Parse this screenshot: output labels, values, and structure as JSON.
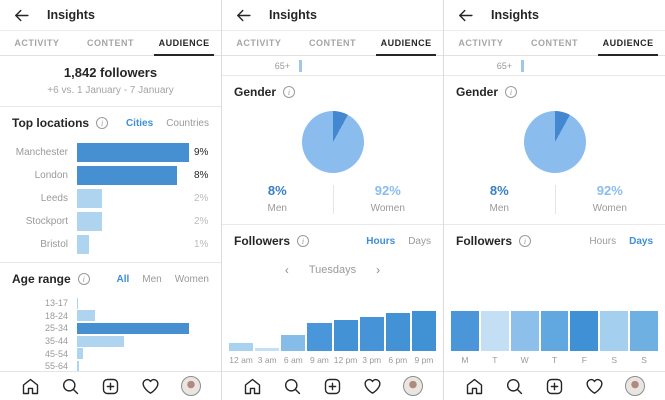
{
  "colors": {
    "accent_blue": "#3d8fd9",
    "bar_dark": "#4690d2",
    "bar_light": "#aed4f0",
    "tab_active": "#262626",
    "text_gray": "#9a9a9a"
  },
  "header": {
    "back_icon": "back-arrow-icon",
    "title": "Insights"
  },
  "tabs": {
    "activity": "ACTIVITY",
    "content": "CONTENT",
    "audience": "AUDIENCE",
    "active": "AUDIENCE"
  },
  "info_icon": "i",
  "nav": {
    "icons": [
      "home-icon",
      "search-icon",
      "new-post-icon",
      "heart-icon",
      "profile-avatar"
    ]
  },
  "panels": [
    {
      "summary": {
        "count": "1,842 followers",
        "delta": "+6 vs. 1 January - 7 January"
      },
      "top_locations": {
        "title": "Top locations",
        "toggle_cities": "Cities",
        "toggle_countries": "Countries",
        "active_toggle": "Cities",
        "chart_data": {
          "type": "bar",
          "orientation": "horizontal",
          "categories": [
            "Manchester",
            "London",
            "Leeds",
            "Stockport",
            "Bristol"
          ],
          "values": [
            9,
            8,
            2,
            2,
            1
          ],
          "value_labels": [
            "9%",
            "8%",
            "2%",
            "2%",
            "1%"
          ],
          "max": 9,
          "shades": [
            "dark",
            "dark",
            "light",
            "light",
            "light"
          ]
        }
      },
      "age_range": {
        "title": "Age range",
        "toggle_all": "All",
        "toggle_men": "Men",
        "toggle_women": "Women",
        "active_toggle": "All",
        "chart_data": {
          "type": "bar",
          "orientation": "horizontal",
          "categories": [
            "13-17",
            "18-24",
            "25-34",
            "35-44",
            "45-54",
            "55-64",
            "65+"
          ],
          "relative_widths": [
            1,
            16,
            100,
            42,
            5,
            2,
            1
          ],
          "shades": [
            "light",
            "light",
            "dark",
            "light",
            "light",
            "light",
            "light"
          ]
        }
      }
    },
    {
      "partial_row_label": "65+",
      "gender": {
        "title": "Gender",
        "chart_data": {
          "type": "pie",
          "labels": [
            "Men",
            "Women"
          ],
          "values": [
            8,
            92
          ],
          "value_labels": [
            "8%",
            "92%"
          ],
          "colors": [
            "#4287cf",
            "#8abced"
          ]
        }
      },
      "followers": {
        "title": "Followers",
        "toggle_hours": "Hours",
        "toggle_days": "Days",
        "active_toggle": "Hours",
        "selector": {
          "prev": "‹",
          "label": "Tuesdays",
          "next": "›"
        },
        "chart_data": {
          "type": "bar",
          "orientation": "vertical",
          "categories": [
            "12 am",
            "3 am",
            "6 am",
            "9 am",
            "12 pm",
            "3 pm",
            "6 pm",
            "9 pm"
          ],
          "relative_heights": [
            21,
            8,
            39,
            70,
            78,
            85,
            95,
            100
          ],
          "colors": [
            "#a9d2ef",
            "#c3e0f4",
            "#85bce8",
            "#4a96da",
            "#4392d6",
            "#4694d7",
            "#4392d6",
            "#4191d5"
          ]
        }
      }
    },
    {
      "partial_row_label": "65+",
      "gender": {
        "title": "Gender",
        "chart_data": {
          "type": "pie",
          "labels": [
            "Men",
            "Women"
          ],
          "values": [
            8,
            92
          ],
          "value_labels": [
            "8%",
            "92%"
          ],
          "colors": [
            "#4287cf",
            "#8abced"
          ]
        }
      },
      "followers": {
        "title": "Followers",
        "toggle_hours": "Hours",
        "toggle_days": "Days",
        "active_toggle": "Days",
        "chart_data": {
          "type": "bar",
          "orientation": "vertical",
          "categories": [
            "M",
            "T",
            "W",
            "T",
            "F",
            "S",
            "S"
          ],
          "relative_heights": [
            100,
            100,
            100,
            100,
            100,
            100,
            100
          ],
          "colors": [
            "#4a96d8",
            "#c4def4",
            "#8cc0ea",
            "#62a8e0",
            "#3f90d5",
            "#a5cfee",
            "#6fb0e2"
          ]
        }
      }
    }
  ]
}
